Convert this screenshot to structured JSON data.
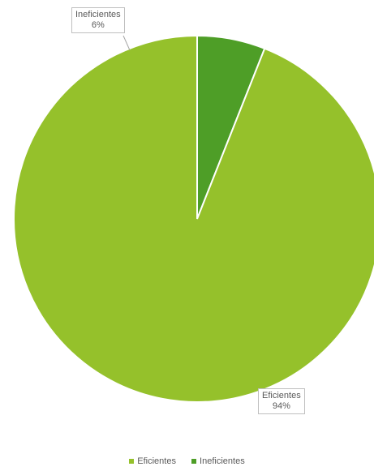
{
  "chart_data": {
    "type": "pie",
    "categories": [
      "Eficientes",
      "Ineficientes"
    ],
    "values": [
      94,
      6
    ],
    "labels": [
      {
        "name": "Eficientes",
        "value": "94%"
      },
      {
        "name": "Ineficientes",
        "value": "6%"
      }
    ],
    "colors": [
      "#95C12B",
      "#4E9E27"
    ],
    "legend": {
      "placement": "bottom",
      "items": [
        "Eficientes",
        "Ineficientes"
      ]
    },
    "start_angle": "12 o'clock",
    "direction": "clockwise, Ineficientes then Eficientes"
  }
}
